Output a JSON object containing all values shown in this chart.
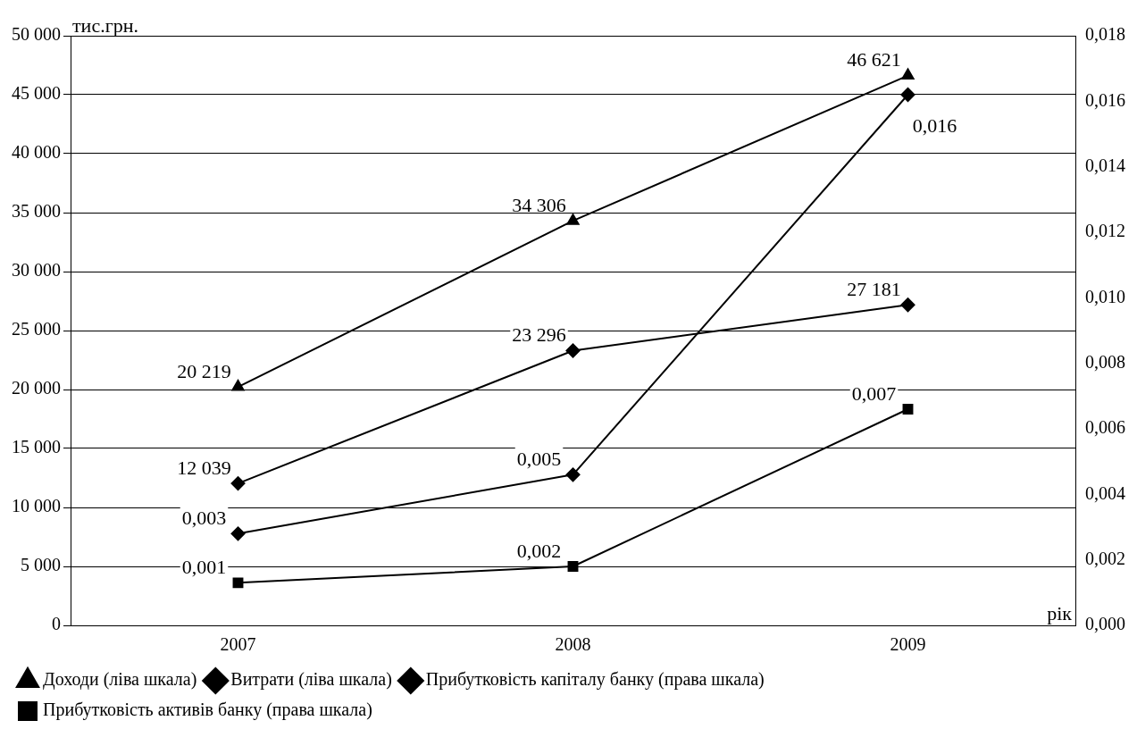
{
  "chart_data": {
    "type": "line",
    "ylabel": "тис.грн.",
    "xlabel": "рік",
    "categories": [
      "2007",
      "2008",
      "2009"
    ],
    "series": [
      {
        "name": "Доходи (ліва шкала)",
        "color": "#000000",
        "marker": "triangle",
        "values": [
          20219,
          34306,
          46621
        ],
        "value_labels": [
          "20 219",
          "34 306",
          "46 621"
        ]
      },
      {
        "name": "Витрати (ліва шкала)",
        "color": "#000000",
        "marker": "diamond",
        "values": [
          12039,
          23296,
          27181
        ],
        "value_labels": [
          "12 039",
          "23 296",
          "27 181"
        ]
      },
      {
        "name": "Прибутковість капіталу банку (права шкала)",
        "color": "#000000",
        "marker": "diamond",
        "axis": "y2",
        "values": [
          0.0028,
          0.0046,
          0.0162
        ],
        "value_labels": [
          "0,003",
          "0,005",
          "0,016"
        ]
      },
      {
        "name": "Прибутковість активів банку (права шкала)",
        "color": "#000000",
        "marker": "square",
        "axis": "y2",
        "values": [
          0.0013,
          0.0018,
          0.0066
        ],
        "value_labels": [
          "0,001",
          "0,002",
          "0,007"
        ]
      }
    ],
    "ylim": [
      0,
      50000
    ],
    "yticks": [
      {
        "value": 0,
        "label": "0"
      },
      {
        "value": 5000,
        "label": "5 000"
      },
      {
        "value": 10000,
        "label": "10 000"
      },
      {
        "value": 15000,
        "label": "15 000"
      },
      {
        "value": 20000,
        "label": "20 000"
      },
      {
        "value": 25000,
        "label": "25 000"
      },
      {
        "value": 30000,
        "label": "30 000"
      },
      {
        "value": 35000,
        "label": "35 000"
      },
      {
        "value": 40000,
        "label": "40 000"
      },
      {
        "value": 45000,
        "label": "45 000"
      },
      {
        "value": 50000,
        "label": "50 000"
      }
    ],
    "y2lim": [
      0,
      0.018
    ],
    "y2ticks": [
      {
        "value": 0,
        "label": "0,000"
      },
      {
        "value": 0.002,
        "label": "0,002"
      },
      {
        "value": 0.004,
        "label": "0,004"
      },
      {
        "value": 0.006,
        "label": "0,006"
      },
      {
        "value": 0.008,
        "label": "0,008"
      },
      {
        "value": 0.01,
        "label": "0,010"
      },
      {
        "value": 0.012,
        "label": "0,012"
      },
      {
        "value": 0.014,
        "label": "0,014"
      },
      {
        "value": 0.016,
        "label": "0,016"
      },
      {
        "value": 0.018,
        "label": "0,018"
      }
    ],
    "grid": "y",
    "legend": "bottom",
    "line_style": "solid"
  }
}
